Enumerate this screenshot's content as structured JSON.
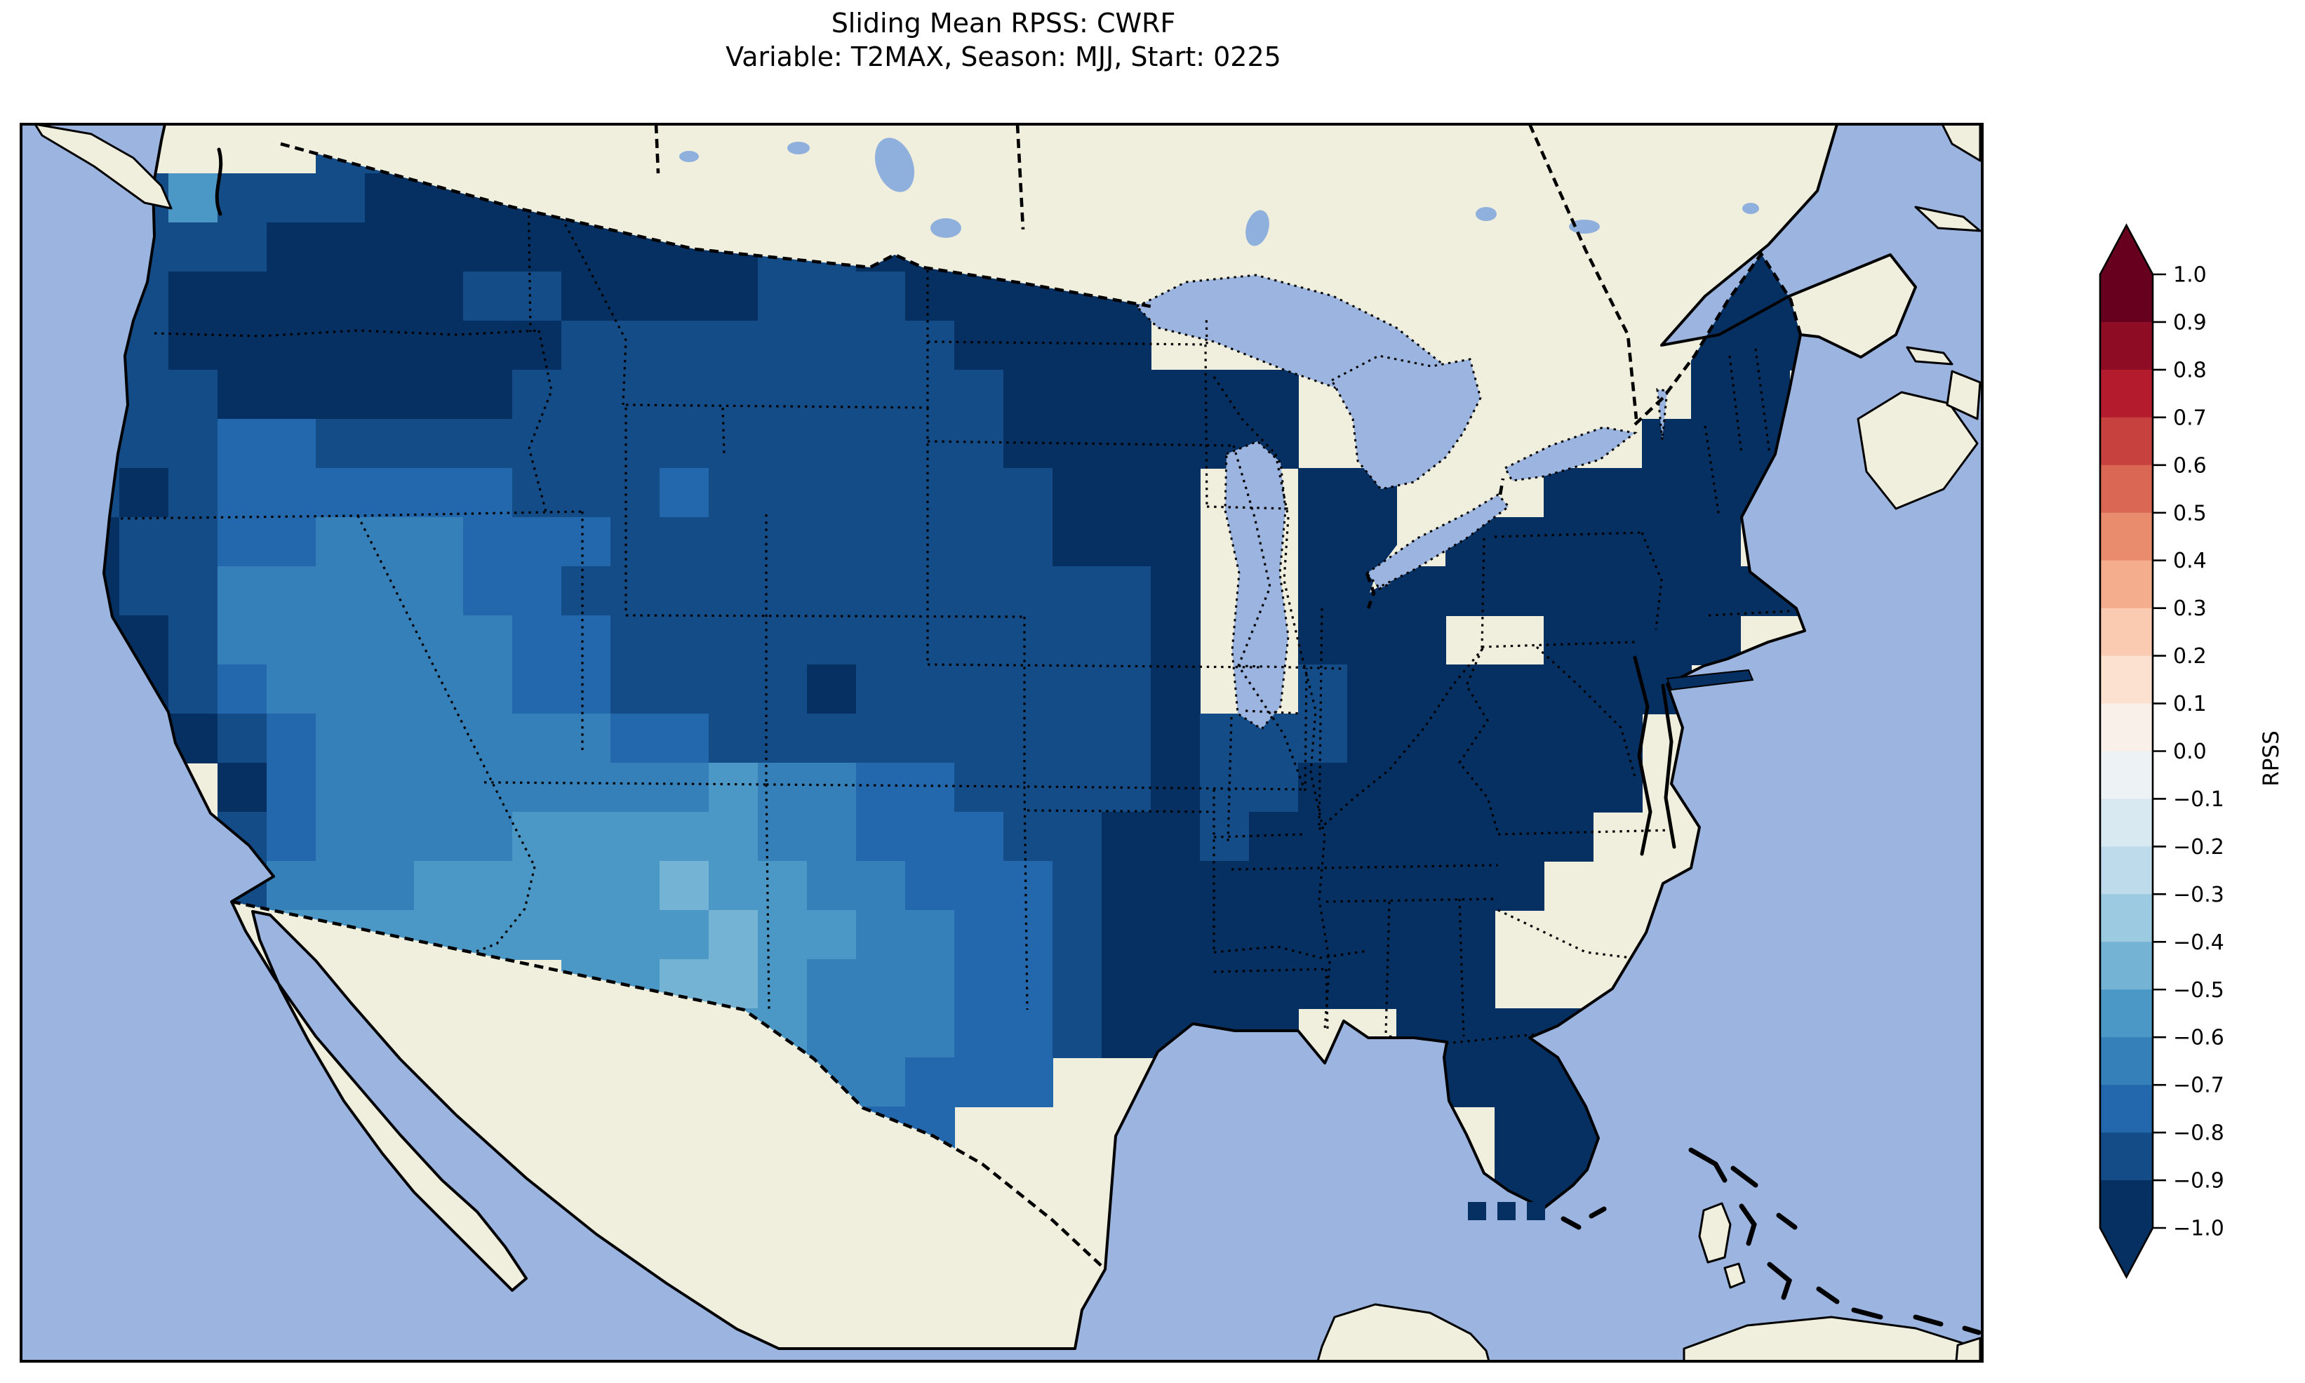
{
  "title": {
    "line1": "Sliding Mean RPSS: CWRF",
    "line2": "Variable: T2MAX, Season: MJJ, Start: 0225"
  },
  "colorbar": {
    "label": "RPSS",
    "tick_labels": [
      "1.0",
      "0.9",
      "0.8",
      "0.7",
      "0.6",
      "0.5",
      "0.4",
      "0.3",
      "0.2",
      "0.1",
      "0.0",
      "−0.1",
      "−0.2",
      "−0.3",
      "−0.4",
      "−0.5",
      "−0.6",
      "−0.7",
      "−0.8",
      "−0.9",
      "−1.0"
    ],
    "segment_colors_top_to_bottom": [
      "#67001f",
      "#8e0d25",
      "#b41c2d",
      "#c7423f",
      "#d96753",
      "#e98c6e",
      "#f5ae8d",
      "#facab1",
      "#fce1d1",
      "#f9f0ea",
      "#edf2f5",
      "#d9e9f1",
      "#bddbea",
      "#9ccae1",
      "#75b3d4",
      "#4b98c6",
      "#3580b9",
      "#2368ad",
      "#144c88",
      "#053061"
    ],
    "over_arrow_color": "#67001f",
    "under_arrow_color": "#053061"
  },
  "map": {
    "ocean_color": "#9bb5e0",
    "land_color": "#f0eedc",
    "lake_color": "#9bb5e0",
    "small_lake_color": "#8fb0dd",
    "coastline_color": "#000000",
    "border_style": "dashed",
    "state_border_style": "dotted"
  },
  "chart_data": {
    "type": "heatmap",
    "metric": "Sliding Mean RPSS",
    "model": "CWRF",
    "variable": "T2MAX",
    "season": "MJJ",
    "start": "0225",
    "value_range": [
      -1.0,
      1.0
    ],
    "bin_width": 0.1,
    "colormap": "RdBu_r (20 discrete bins, extend both)",
    "summary": "RPSS is negative everywhere over CONUS: darkest (about -0.9 to -1.0) across the eastern US, Gulf states, Florida, upper Midwest, Northeast and Pacific interior; moderately negative (about -0.7 to -0.8) over the plains and west coast; least negative (about -0.4 to -0.6) over the Southwest, New Mexico and far-west Texas.",
    "grid": {
      "cols": 40,
      "rows": 25,
      "cell_size_px": 70,
      "cell_values_legend": {
        "a": -0.95,
        "b": -0.85,
        "c": -0.75,
        "d": -0.65,
        "e": -0.55,
        "f": -0.45,
        ".": null
      },
      "rows_encoded": [
        "......bbbaaaab..........................",
        ".cbebbbaaaaabbaab.......................",
        ".bbbbaaaaaaaaaabbaaa..............aaa...",
        ".bbaaaaaabbaaaabbbaaaaa...........aaa...",
        ".bbaaaaaaaabbbbbbbbaaaa...........aaa...",
        ".bbbaaaaaabbbbbbbbbbaaaaaa........aa....",
        ".bbbccbbbbbbbbbbbbbbaaaaaa.......aaa....",
        ".babccccccbbbcbbbbbbbaaa..aa...aaaaa....",
        ".abbccdddcccbbbbbbbbbaaa..aa.aaaaaa.....",
        ".abbdddddccbbbbbbbbbbbba..aaaaaaaaaaa...",
        ".aabddddddccbbbbbbbbbbba..aaa..aaaa.....",
        "..abcdddddccbbbbabbbbbba..baaaaaaa......",
        "...abcddddddccbbbbbbbbbabbbaaaaaa.......",
        "....acddddddddeddccbbbbabbaaaaaaa.......",
        "....bcddddeeeeeddcccbbaabaaaaaaa........",
        "....bdddeeeeefeeddcccbaaaaaaaaa.........",
        ".....eeeeeeeeefeeddccbaaaaaaaa..........",
        "...........eeffedddccbaaaaaaaa..........",
        ".............eeedddccbaaaa..aaaa........",
        "...............dddccc........aaa........",
        "................dcc...........aaa.......",
        ".................ba...........aaa.......",
        ".................b............aa........",
        ".................b......................",
        "........................................"
      ]
    },
    "extra_cells": [
      {
        "name": "florida-keys",
        "values": [
          -0.95,
          -0.95,
          -0.95
        ]
      },
      {
        "name": "long-island",
        "value": -0.95
      }
    ]
  }
}
